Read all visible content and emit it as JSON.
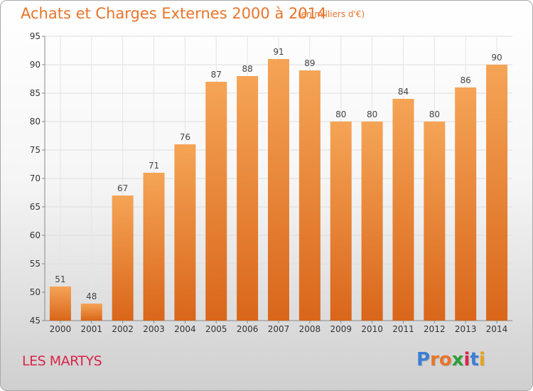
{
  "header": {
    "title": "Achats et Charges Externes 2000 à 2014",
    "subtitle": "(en milliers d'€)"
  },
  "footer": {
    "commune": "LES MARTYS",
    "brand": "Proxiti",
    "brand_colors": [
      "#3d7fd6",
      "#e8742a",
      "#e8742a",
      "#2e9e3a",
      "#d8264a",
      "#3d7fd6",
      "#e8a21a"
    ]
  },
  "colors": {
    "bar_top": "#f5a456",
    "bar_bottom": "#d9661a",
    "title": "#e8742a",
    "commune": "#d8264a"
  },
  "chart_data": {
    "type": "bar",
    "categories": [
      "2000",
      "2001",
      "2002",
      "2003",
      "2004",
      "2005",
      "2006",
      "2007",
      "2008",
      "2009",
      "2010",
      "2011",
      "2012",
      "2013",
      "2014"
    ],
    "values": [
      51,
      48,
      67,
      71,
      76,
      87,
      88,
      91,
      89,
      80,
      80,
      84,
      80,
      86,
      90
    ],
    "ylim": [
      45,
      95
    ],
    "yticks": [
      45,
      50,
      55,
      60,
      65,
      70,
      75,
      80,
      85,
      90,
      95
    ],
    "grid": true,
    "data_labels": true
  }
}
